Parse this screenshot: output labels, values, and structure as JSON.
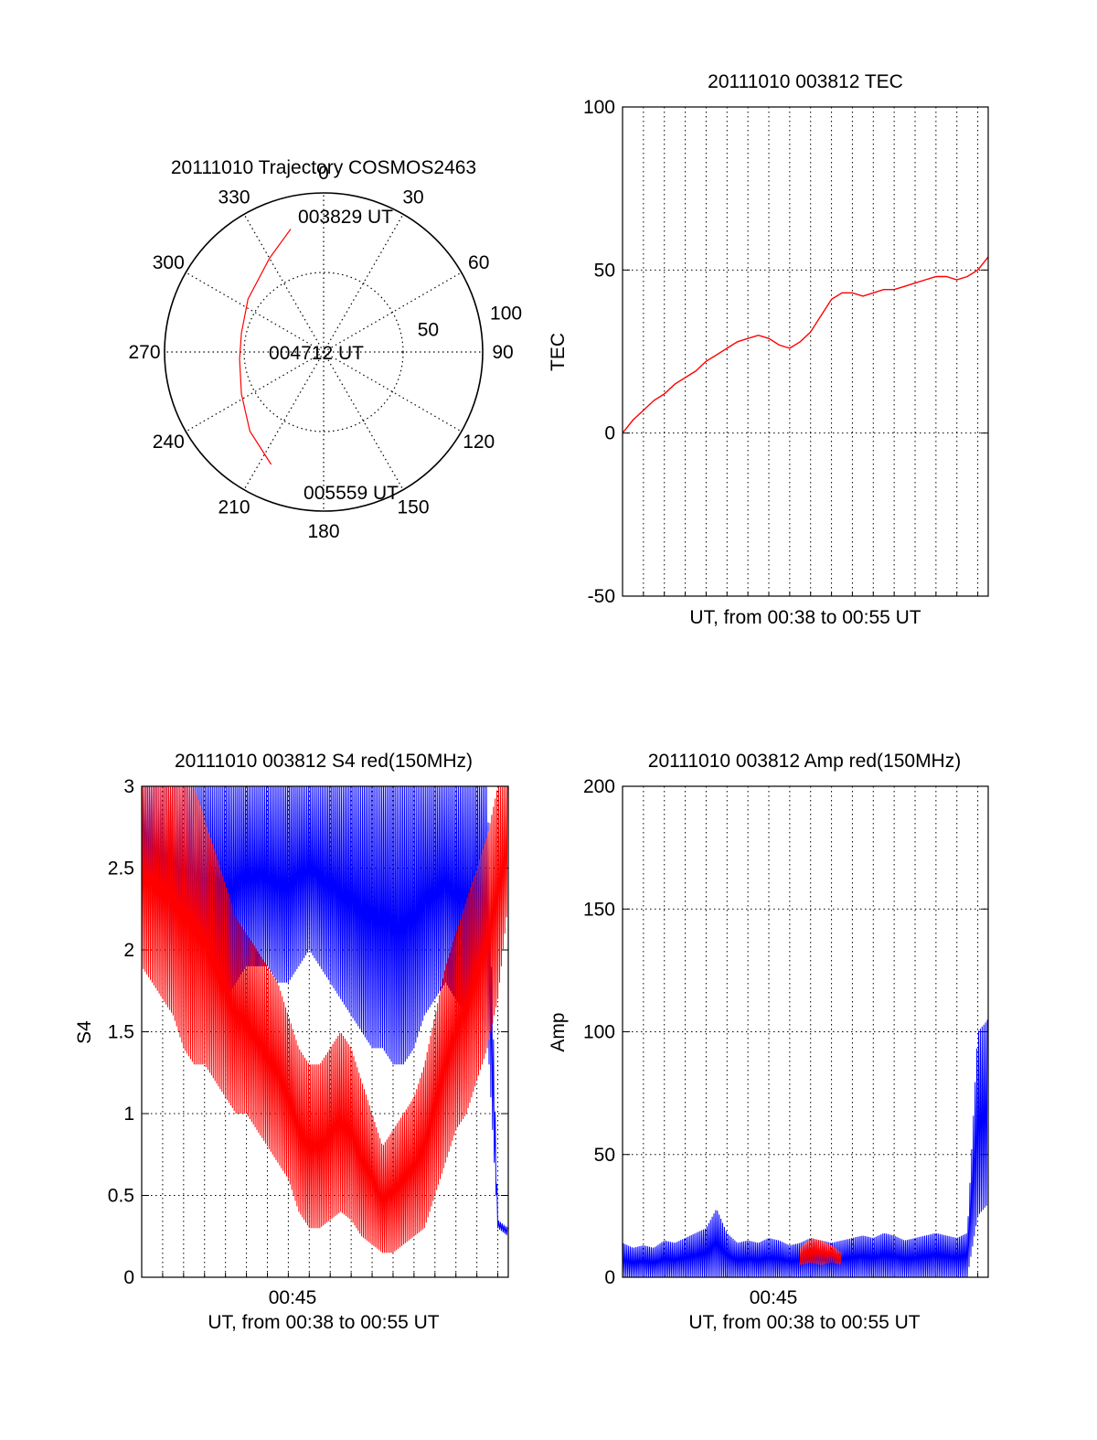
{
  "colors": {
    "red": "#ff0000",
    "blue": "#0000ff",
    "axis": "#000000",
    "grid": "#000000"
  },
  "chart_data": [
    {
      "type": "polar",
      "title": "20111010 Trajectory COSMOS2463",
      "angle_labels": [
        "0",
        "30",
        "60",
        "90",
        "120",
        "150",
        "180",
        "210",
        "240",
        "270",
        "300",
        "330"
      ],
      "radial_labels": [
        "50",
        "100"
      ],
      "rlim": [
        0,
        100
      ],
      "angle_direction": "clockwise, 0 at top",
      "series": [
        {
          "color": "red",
          "points": [
            {
              "az": 345,
              "r": 80
            },
            {
              "az": 330,
              "r": 68
            },
            {
              "az": 305,
              "r": 58
            },
            {
              "az": 283,
              "r": 53
            },
            {
              "az": 265,
              "r": 53
            },
            {
              "az": 243,
              "r": 58
            },
            {
              "az": 223,
              "r": 68
            },
            {
              "az": 205,
              "r": 78
            }
          ]
        }
      ],
      "annotations": [
        "003829 UT",
        "004712 UT",
        "005559 UT"
      ]
    },
    {
      "type": "line",
      "title": "20111010 003812 TEC",
      "xlabel": "UT, from 00:38 to 00:55 UT",
      "ylabel": "TEC",
      "xlim": [
        0,
        17.5
      ],
      "ylim": [
        -50,
        100
      ],
      "yticks": [
        "-50",
        "0",
        "50",
        "100"
      ],
      "grid": true,
      "series": [
        {
          "color": "red",
          "x": [
            0,
            0.5,
            1.0,
            1.5,
            2.0,
            2.5,
            3.0,
            3.5,
            4.0,
            4.5,
            5.0,
            5.5,
            6.0,
            6.5,
            7.0,
            7.5,
            8.0,
            8.5,
            9.0,
            9.5,
            10.0,
            10.5,
            11.0,
            11.5,
            12.0,
            12.5,
            13.0,
            13.5,
            14.0,
            14.5,
            15.0,
            15.5,
            16.0,
            16.5,
            17.0,
            17.5
          ],
          "y": [
            0,
            4,
            7,
            10,
            12,
            15,
            17,
            19,
            22,
            24,
            26,
            28,
            29,
            30,
            29,
            27,
            26,
            28,
            31,
            36,
            41,
            43,
            43,
            42,
            43,
            44,
            44,
            45,
            46,
            47,
            48,
            48,
            47,
            48,
            50,
            54
          ]
        }
      ]
    },
    {
      "type": "line",
      "title": "20111010 003812 S4 red(150MHz)",
      "xlabel": "UT, from 00:38 to 00:55 UT",
      "ylabel": "S4",
      "xlim": [
        0,
        17.5
      ],
      "ylim": [
        0,
        3
      ],
      "yticks": [
        "0",
        "0.5",
        "1",
        "1.5",
        "2",
        "2.5",
        "3"
      ],
      "xtick": "00:45",
      "grid": true,
      "series": [
        {
          "color": "blue",
          "x": [
            0,
            0.5,
            1,
            1.5,
            2,
            2.5,
            3,
            3.5,
            4,
            4.5,
            5,
            5.5,
            6,
            6.5,
            7,
            7.5,
            8,
            8.5,
            9,
            9.5,
            10,
            10.5,
            11,
            11.5,
            12,
            12.5,
            13,
            13.5,
            14,
            14.5,
            15,
            15.5,
            16,
            16.5,
            17,
            17.5
          ],
          "y_low": [
            2.5,
            2.2,
            2.1,
            2.0,
            1.9,
            1.9,
            1.8,
            1.8,
            1.7,
            1.8,
            1.9,
            1.9,
            1.9,
            1.8,
            1.8,
            1.9,
            2.0,
            1.9,
            1.8,
            1.7,
            1.6,
            1.5,
            1.4,
            1.4,
            1.3,
            1.3,
            1.4,
            1.6,
            1.7,
            1.8,
            1.7,
            1.6,
            1.7,
            1.5,
            0.3,
            0.25
          ],
          "y_high": [
            3,
            3,
            3,
            3,
            3,
            3,
            3,
            3,
            3,
            3,
            3,
            3,
            3,
            3,
            3,
            3,
            3,
            3,
            3,
            3,
            3,
            3,
            3,
            3,
            3,
            3,
            3,
            3,
            3,
            3,
            3,
            3,
            3,
            3,
            0.35,
            0.3
          ]
        },
        {
          "color": "red",
          "x": [
            0,
            0.5,
            1,
            1.5,
            2,
            2.5,
            3,
            3.5,
            4,
            4.5,
            5,
            5.5,
            6,
            6.5,
            7,
            7.5,
            8,
            8.5,
            9,
            9.5,
            10,
            10.5,
            11,
            11.5,
            12,
            12.5,
            13,
            13.5,
            14,
            14.5,
            15,
            15.5,
            16,
            16.5,
            17,
            17.5
          ],
          "y_low": [
            1.9,
            1.8,
            1.7,
            1.6,
            1.4,
            1.3,
            1.3,
            1.2,
            1.1,
            1.0,
            1.0,
            0.9,
            0.8,
            0.7,
            0.6,
            0.4,
            0.3,
            0.3,
            0.35,
            0.4,
            0.35,
            0.25,
            0.2,
            0.15,
            0.15,
            0.2,
            0.25,
            0.3,
            0.5,
            0.7,
            0.9,
            1.0,
            1.2,
            1.4,
            1.7,
            2.3
          ],
          "y_high": [
            3,
            3,
            3,
            3,
            3,
            3,
            2.8,
            2.6,
            2.4,
            2.2,
            2.1,
            2.0,
            1.9,
            1.8,
            1.6,
            1.4,
            1.3,
            1.3,
            1.4,
            1.5,
            1.4,
            1.2,
            1.0,
            0.8,
            0.9,
            1.0,
            1.1,
            1.3,
            1.6,
            1.9,
            2.1,
            2.3,
            2.5,
            2.7,
            3,
            3
          ]
        }
      ]
    },
    {
      "type": "line",
      "title": "20111010 003812 Amp red(150MHz)",
      "xlabel": "UT, from 00:38 to 00:55 UT",
      "ylabel": "Amp",
      "xlim": [
        0,
        17.5
      ],
      "ylim": [
        0,
        200
      ],
      "yticks": [
        "0",
        "50",
        "100",
        "150",
        "200"
      ],
      "xtick": "00:45",
      "grid": true,
      "series": [
        {
          "color": "blue",
          "x": [
            0,
            0.5,
            1,
            1.5,
            2,
            2.5,
            3,
            3.5,
            4,
            4.5,
            5,
            5.5,
            6,
            6.5,
            7,
            7.5,
            8,
            8.5,
            9,
            9.5,
            10,
            10.5,
            11,
            11.5,
            12,
            12.5,
            13,
            13.5,
            14,
            14.5,
            15,
            15.5,
            16,
            16.5,
            17,
            17.5
          ],
          "y_low": [
            0,
            0,
            0,
            0,
            0,
            0,
            0,
            0,
            0,
            0,
            0,
            0,
            0,
            0,
            0,
            0,
            0,
            0,
            0,
            0,
            0,
            0,
            0,
            0,
            0,
            0,
            0,
            0,
            0,
            0,
            0,
            0,
            0,
            0,
            25,
            30
          ],
          "y_high": [
            14,
            12,
            13,
            12,
            15,
            14,
            16,
            18,
            20,
            28,
            18,
            14,
            15,
            14,
            16,
            15,
            13,
            14,
            16,
            15,
            14,
            15,
            16,
            17,
            16,
            18,
            17,
            15,
            16,
            17,
            18,
            17,
            16,
            18,
            100,
            105
          ]
        },
        {
          "color": "red",
          "x": [
            8.5,
            9.0,
            9.5,
            10.0,
            10.5
          ],
          "y_low": [
            5,
            6,
            5,
            6,
            5
          ],
          "y_high": [
            12,
            16,
            15,
            13,
            10
          ]
        }
      ]
    }
  ]
}
